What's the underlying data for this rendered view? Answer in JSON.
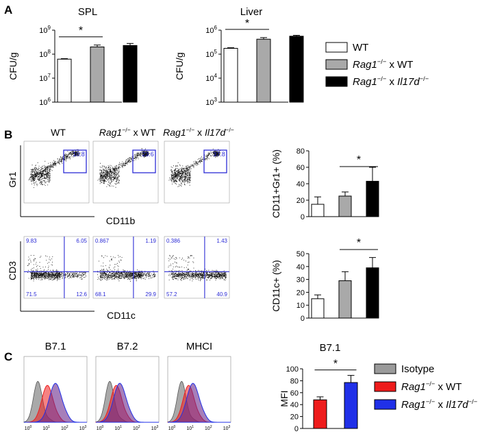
{
  "panels": {
    "A": {
      "label": "A",
      "chart_data": [
        {
          "type": "bar",
          "title": "SPL",
          "ylabel": "CFU/g",
          "yscale": "log",
          "ylim": [
            1000000,
            1000000000
          ],
          "yticks": [
            {
              "base": "10",
              "exp": "6"
            },
            {
              "base": "10",
              "exp": "7"
            },
            {
              "base": "10",
              "exp": "8"
            },
            {
              "base": "10",
              "exp": "9"
            }
          ],
          "categories": [
            "WT",
            "Rag1-/- x WT",
            "Rag1-/- x Il17d-/-"
          ],
          "values": [
            62000000,
            200000000,
            230000000
          ],
          "errors": [
            3000000,
            40000000,
            50000000
          ],
          "significance": "*"
        },
        {
          "type": "bar",
          "title": "Liver",
          "ylabel": "CFU/g",
          "yscale": "log",
          "ylim": [
            1000,
            1000000
          ],
          "yticks": [
            {
              "base": "10",
              "exp": "3"
            },
            {
              "base": "10",
              "exp": "4"
            },
            {
              "base": "10",
              "exp": "5"
            },
            {
              "base": "10",
              "exp": "6"
            }
          ],
          "categories": [
            "WT",
            "Rag1-/- x WT",
            "Rag1-/- x Il17d-/-"
          ],
          "values": [
            175000,
            420000,
            560000
          ],
          "errors": [
            10000,
            70000,
            50000
          ],
          "significance": "*"
        }
      ],
      "legend": [
        {
          "pre": "WT",
          "sup1": "",
          "mid": "",
          "it2": "",
          "sup2": "",
          "fill": "#ffffff"
        },
        {
          "pre": "Rag1",
          "sup1": "−/−",
          "mid": " x WT",
          "it2": "",
          "sup2": "",
          "fill": "#a9a9a9"
        },
        {
          "pre": "Rag1",
          "sup1": "−/−",
          "mid": " x ",
          "it2": "Il17d",
          "sup2": "−/−",
          "fill": "#000000"
        }
      ]
    },
    "B": {
      "label": "B",
      "col_headers": [
        {
          "pre": "WT",
          "sup1": "",
          "mid": "",
          "it2": "",
          "sup2": ""
        },
        {
          "pre": "Rag1",
          "sup1": "−/−",
          "mid": " x WT",
          "it2": "",
          "sup2": ""
        },
        {
          "pre": "Rag1",
          "sup1": "−/−",
          "mid": " x ",
          "it2": "Il17d",
          "sup2": "−/−"
        }
      ],
      "gr1_plots": {
        "y_axis": "Gr1",
        "x_axis": "CD11b",
        "gate_values": [
          "10.8",
          "23.6",
          "37.8"
        ]
      },
      "cd3_plots": {
        "y_axis": "CD3",
        "x_axis": "CD11c",
        "quadrants": [
          {
            "ul": "9.83",
            "ur": "6.05",
            "ll": "71.5",
            "lr": "12.6"
          },
          {
            "ul": "0.867",
            "ur": "1.19",
            "ll": "68.1",
            "lr": "29.9"
          },
          {
            "ul": "0.386",
            "ur": "1.43",
            "ll": "57.2",
            "lr": "40.9"
          }
        ]
      },
      "chart_data": [
        {
          "type": "bar",
          "ylabel": "CD11+Gr1+ (%)",
          "ylim": [
            0,
            80
          ],
          "yticks": [
            "0",
            "20",
            "40",
            "60",
            "80"
          ],
          "categories": [
            "WT",
            "Rag1-/- x WT",
            "Rag1-/- x Il17d-/-"
          ],
          "values": [
            15,
            25,
            43
          ],
          "errors": [
            9,
            5,
            17
          ],
          "significance": "*"
        },
        {
          "type": "bar",
          "ylabel": "CD11c+ (%)",
          "ylim": [
            0,
            50
          ],
          "yticks": [
            "0",
            "10",
            "20",
            "30",
            "40",
            "50"
          ],
          "categories": [
            "WT",
            "Rag1-/- x WT",
            "Rag1-/- x Il17d-/-"
          ],
          "values": [
            15,
            29,
            39
          ],
          "errors": [
            3,
            7,
            8
          ],
          "significance": "*"
        }
      ]
    },
    "C": {
      "label": "C",
      "histogram_titles": [
        "B7.1",
        "B7.2",
        "MHCI"
      ],
      "hist_ticks": [
        {
          "base": "10",
          "exp": "0"
        },
        {
          "base": "10",
          "exp": "1"
        },
        {
          "base": "10",
          "exp": "2"
        },
        {
          "base": "10",
          "exp": "3"
        }
      ],
      "chart_data": {
        "type": "bar",
        "title": "B7.1",
        "ylabel": "MFI",
        "ylim": [
          0,
          100
        ],
        "yticks": [
          "0",
          "20",
          "40",
          "60",
          "80",
          "100"
        ],
        "categories": [
          "Rag1-/- x WT",
          "Rag1-/- x Il17d-/-"
        ],
        "values": [
          48,
          77
        ],
        "errors": [
          5,
          12
        ],
        "significance": "*"
      },
      "legend": [
        {
          "pre": "Isotype",
          "sup1": "",
          "mid": "",
          "it2": "",
          "sup2": "",
          "fill": "#9a9a9a"
        },
        {
          "pre": "Rag1",
          "sup1": "−/−",
          "mid": " x WT",
          "it2": "",
          "sup2": "",
          "fill": "#ee1c1c"
        },
        {
          "pre": "Rag1",
          "sup1": "−/−",
          "mid": " x ",
          "it2": "Il17d",
          "sup2": "−/−",
          "fill": "#2030e8"
        }
      ]
    }
  },
  "colors": {
    "wt": "#ffffff",
    "rag_wt": "#a9a9a9",
    "rag_il17d": "#000000",
    "red": "#ee1c1c",
    "blue": "#2030e8",
    "isotype": "#9a9a9a",
    "gate": "#2b2bd6"
  }
}
